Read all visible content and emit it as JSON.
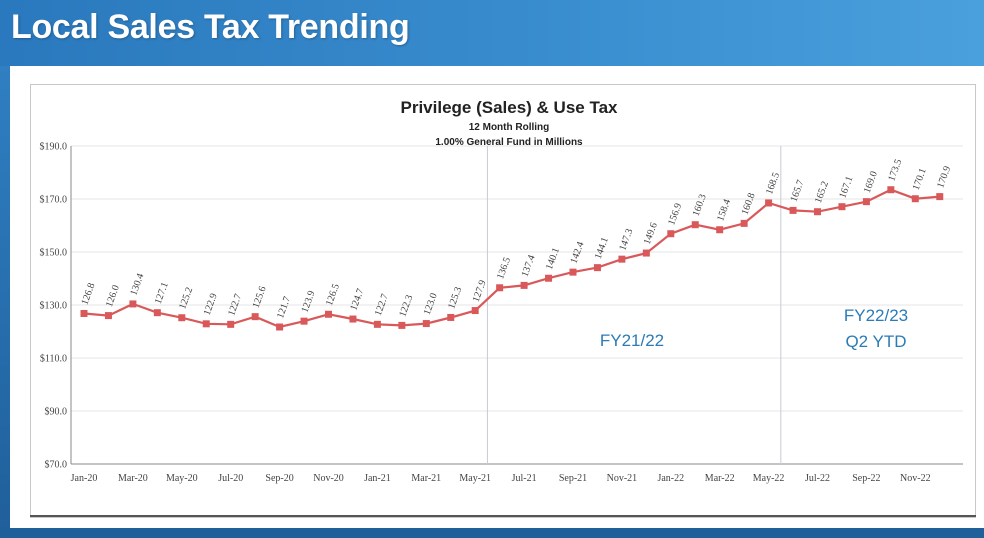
{
  "slide": {
    "title": "Local Sales Tax Trending"
  },
  "colors": {
    "line": "#d9595a",
    "marker": "#d9595a",
    "accent": "#2b7bb6",
    "header": "#2f7fc2"
  },
  "chart_data": {
    "type": "line",
    "title": "Privilege (Sales) & Use Tax",
    "subtitle1": "12 Month Rolling",
    "subtitle2": "1.00% General Fund in Millions",
    "ylim": [
      70,
      190
    ],
    "yticks": [
      "$70.0",
      "$90.0",
      "$110.0",
      "$130.0",
      "$150.0",
      "$170.0",
      "$190.0"
    ],
    "ytick_values": [
      70,
      90,
      110,
      130,
      150,
      170,
      190
    ],
    "x_tick_labels": [
      "Jan-20",
      "Mar-20",
      "May-20",
      "Jul-20",
      "Sep-20",
      "Nov-20",
      "Jan-21",
      "Mar-21",
      "May-21",
      "Jul-21",
      "Sep-21",
      "Nov-21",
      "Jan-22",
      "Mar-22",
      "May-22",
      "Jul-22",
      "Sep-22",
      "Nov-22"
    ],
    "series": [
      {
        "name": "12 Month Rolling",
        "values": [
          126.8,
          126.0,
          130.4,
          127.1,
          125.2,
          122.9,
          122.7,
          125.6,
          121.7,
          123.9,
          126.5,
          124.7,
          122.7,
          122.3,
          123.0,
          125.3,
          127.9,
          136.5,
          137.4,
          140.1,
          142.4,
          144.1,
          147.3,
          149.6,
          156.9,
          160.3,
          158.4,
          160.8,
          168.5,
          165.7,
          165.2,
          167.1,
          169.0,
          173.5,
          170.1,
          170.9
        ],
        "labels": [
          "126.8",
          "126.0",
          "130.4",
          "127.1",
          "125.2",
          "122.9",
          "122.7",
          "125.6",
          "121.7",
          "123.9",
          "126.5",
          "124.7",
          "122.7",
          "122.3",
          "123.0",
          "125.3",
          "127.9",
          "136.5",
          "137.4",
          "140.1",
          "142.4",
          "144.1",
          "147.3",
          "149.6",
          "156.9",
          "160.3",
          "158.4",
          "160.8",
          "168.5",
          "165.7",
          "165.2",
          "167.1",
          "169.0",
          "173.5",
          "170.1",
          "170.9"
        ]
      }
    ],
    "annotations": [
      {
        "text": "FY21/22"
      },
      {
        "text": "FY22/23"
      },
      {
        "text": "Q2 YTD"
      }
    ]
  }
}
